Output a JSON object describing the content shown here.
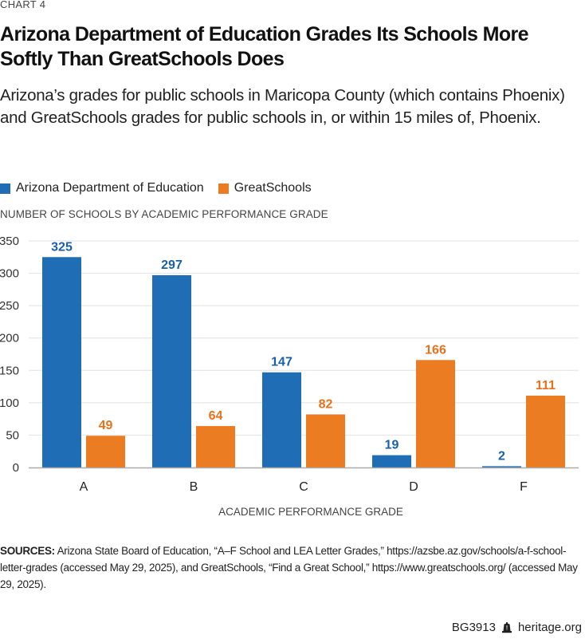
{
  "header": {
    "chart_number": "CHART 4",
    "title": "Arizona Department of Education Grades Its Schools More Softly Than GreatSchools Does",
    "subtitle": "Arizona’s grades for public schools in Maricopa County (which contains Phoenix) and GreatSchools grades for public schools in, or within 15 miles of, Phoenix."
  },
  "footer": {
    "sources_label": "SOURCES:",
    "sources_text": " Arizona State Board of Education, “A–F School and LEA Letter Grades,” https://azsbe.az.gov/schools/a-f-school-letter-grades (accessed May 29, 2025), and GreatSchools, “Find a Great School,” https://www.greatschools.org/ (accessed May 29, 2025).",
    "report_id": "BG3913",
    "icon": "liberty-bell-icon",
    "site": "heritage.org"
  },
  "chart_data": {
    "type": "bar",
    "title": "Arizona Department of Education Grades Its Schools More Softly Than GreatSchools Does",
    "subtitle": "Arizona’s grades for public schools in Maricopa County (which contains Phoenix) and GreatSchools grades for public schools in, or within 15 miles of, Phoenix.",
    "xlabel": "ACADEMIC PERFORMANCE GRADE",
    "ylabel": "NUMBER OF SCHOOLS BY ACADEMIC PERFORMANCE GRADE",
    "categories": [
      "A",
      "B",
      "C",
      "D",
      "F"
    ],
    "series": [
      {
        "name": "Arizona Department of Education",
        "color": "#1f6db5",
        "label_color": "#1a5fad",
        "values": [
          325,
          297,
          147,
          19,
          2
        ]
      },
      {
        "name": "GreatSchools",
        "color": "#ec7c22",
        "label_color": "#e8711c",
        "values": [
          49,
          64,
          82,
          166,
          111
        ]
      }
    ],
    "ylim": [
      0,
      350
    ],
    "yticks": [
      0,
      50,
      100,
      150,
      200,
      250,
      300,
      350
    ],
    "grid": true,
    "legend": "top-left",
    "data_labels": true
  }
}
